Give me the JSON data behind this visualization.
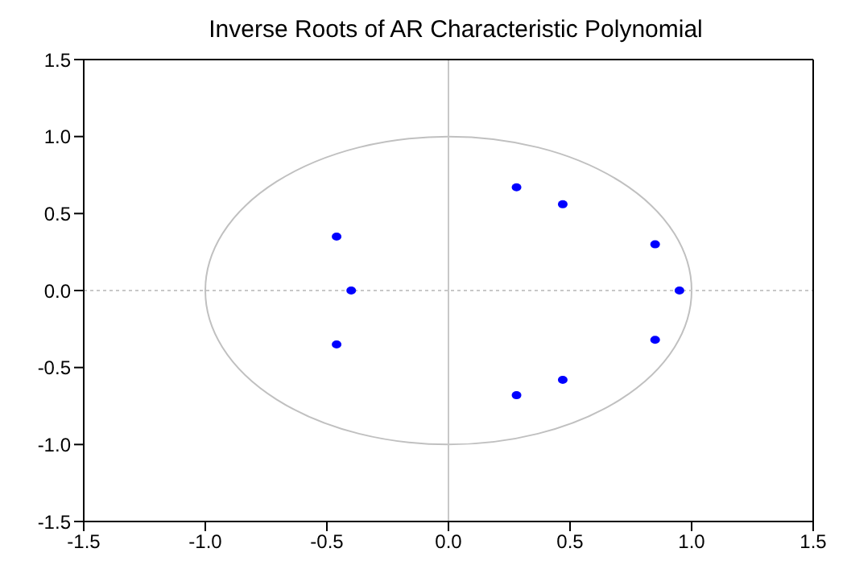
{
  "chart_data": {
    "type": "scatter",
    "title": "Inverse Roots of AR Characteristic Polynomial",
    "xlim": [
      -1.5,
      1.5
    ],
    "ylim": [
      -1.5,
      1.5
    ],
    "xticks": [
      {
        "value": -1.5,
        "label": "-1.5"
      },
      {
        "value": -1,
        "label": "-1.0"
      },
      {
        "value": -0.5,
        "label": "-0.5"
      },
      {
        "value": 0,
        "label": "0.0"
      },
      {
        "value": 0.5,
        "label": "0.5"
      },
      {
        "value": 1,
        "label": "1.0"
      },
      {
        "value": 1.5,
        "label": "1.5"
      }
    ],
    "yticks": [
      {
        "value": -1.5,
        "label": "-1.5"
      },
      {
        "value": -1,
        "label": "-1.0"
      },
      {
        "value": -0.5,
        "label": "-0.5"
      },
      {
        "value": 0,
        "label": "0.0"
      },
      {
        "value": 0.5,
        "label": "0.5"
      },
      {
        "value": 1,
        "label": "1.0"
      },
      {
        "value": 1.5,
        "label": "1.5"
      }
    ],
    "grid": false,
    "legend": false,
    "marker": "circle",
    "ref_lines": [
      {
        "axis": "x",
        "value": 0,
        "color": "#c8c8c8"
      },
      {
        "axis": "y",
        "value": 0,
        "color": "#c8c8c8",
        "line_style": "dotted"
      }
    ],
    "series": [
      {
        "type": "scatter",
        "color": "#0000ff",
        "x": [
          -0.46,
          -0.4,
          -0.46,
          0.28,
          0.47,
          0.85,
          0.95,
          0.85,
          0.47,
          0.28
        ],
        "values": [
          0.35,
          0,
          -0.35,
          0.67,
          0.56,
          0.3,
          0,
          -0.32,
          -0.58,
          -0.68
        ]
      }
    ]
  }
}
